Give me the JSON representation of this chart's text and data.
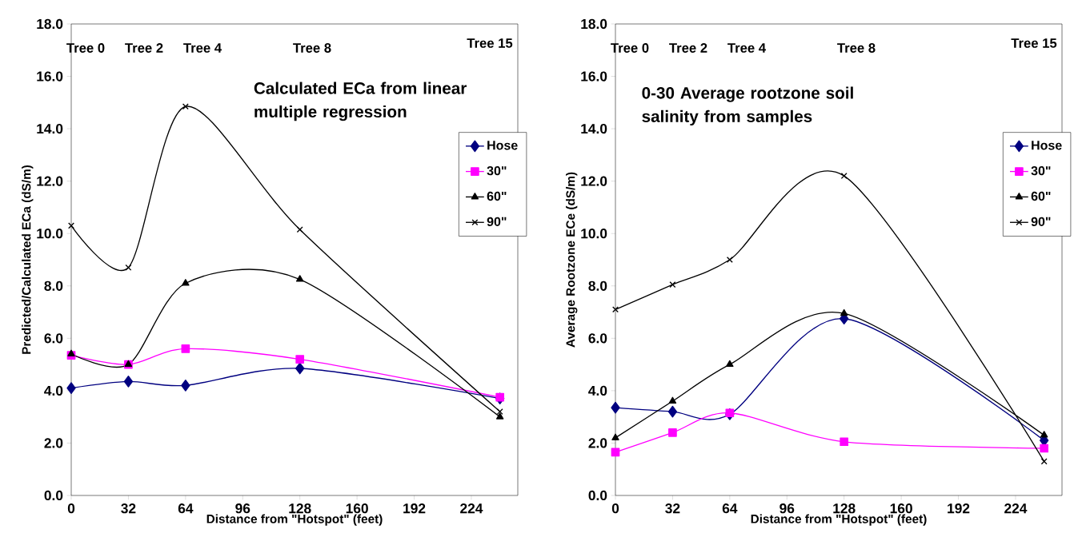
{
  "chart_data": [
    {
      "type": "line",
      "title": "Calculated ECa from linear multiple regression",
      "xlabel": "Distance from \"Hotspot\" (feet)",
      "ylabel": "Predicted/Calculated ECa (dS/m)",
      "x": [
        0,
        32,
        64,
        128,
        240
      ],
      "series": [
        {
          "name": "Hose",
          "color": "#000080",
          "marker": "diamond",
          "values": [
            4.1,
            4.35,
            4.2,
            4.85,
            3.7
          ]
        },
        {
          "name": "30\"",
          "color": "#ff00ff",
          "marker": "square",
          "values": [
            5.35,
            5.0,
            5.6,
            5.2,
            3.75
          ]
        },
        {
          "name": "60\"",
          "color": "#000000",
          "marker": "triangle",
          "values": [
            5.4,
            5.0,
            8.1,
            8.25,
            3.0
          ]
        },
        {
          "name": "90\"",
          "color": "#000000",
          "marker": "cross",
          "values": [
            10.3,
            8.7,
            14.85,
            10.15,
            3.2
          ]
        }
      ],
      "xlim": [
        0,
        250
      ],
      "xticks": [
        0,
        32,
        64,
        96,
        128,
        160,
        192,
        224
      ],
      "ylim": [
        0,
        18
      ],
      "yticks": [
        {
          "value": 0,
          "label": "0.0"
        },
        {
          "value": 2,
          "label": "2.0"
        },
        {
          "value": 4,
          "label": "4.0"
        },
        {
          "value": 6,
          "label": "6.0"
        },
        {
          "value": 8,
          "label": "8.0"
        },
        {
          "value": 10,
          "label": "10.0"
        },
        {
          "value": 12,
          "label": "12.0"
        },
        {
          "value": 14,
          "label": "14.0"
        },
        {
          "value": 16,
          "label": "16.0"
        },
        {
          "value": 18,
          "label": "18.0"
        }
      ],
      "annotations": [
        "Tree 0",
        "Tree 2",
        "Tree 4",
        "Tree 8",
        "Tree 15"
      ],
      "legend": "right",
      "line_style": "solid"
    },
    {
      "type": "line",
      "title": "0-30 Average rootzone soil salinity from samples",
      "xlabel": "Distance from \"Hotspot\" (feet)",
      "ylabel": "Average Rootzone ECe (dS/m)",
      "x": [
        0,
        32,
        64,
        128,
        240
      ],
      "series": [
        {
          "name": "Hose",
          "color": "#000080",
          "marker": "diamond",
          "values": [
            3.35,
            3.2,
            3.1,
            6.75,
            2.1
          ]
        },
        {
          "name": "30\"",
          "color": "#ff00ff",
          "marker": "square",
          "values": [
            1.65,
            2.4,
            3.15,
            2.05,
            1.8
          ]
        },
        {
          "name": "60\"",
          "color": "#000000",
          "marker": "triangle",
          "values": [
            2.2,
            3.6,
            5.0,
            6.95,
            2.3
          ]
        },
        {
          "name": "90\"",
          "color": "#000000",
          "marker": "cross",
          "values": [
            7.1,
            8.05,
            9.0,
            12.2,
            1.3
          ]
        }
      ],
      "xlim": [
        0,
        250
      ],
      "xticks": [
        0,
        32,
        64,
        96,
        128,
        160,
        192,
        224
      ],
      "ylim": [
        0,
        18
      ],
      "yticks": [
        {
          "value": 0,
          "label": "0.0"
        },
        {
          "value": 2,
          "label": "2.0"
        },
        {
          "value": 4,
          "label": "4.0"
        },
        {
          "value": 6,
          "label": "6.0"
        },
        {
          "value": 8,
          "label": "8.0"
        },
        {
          "value": 10,
          "label": "10.0"
        },
        {
          "value": 12,
          "label": "12.0"
        },
        {
          "value": 14,
          "label": "14.0"
        },
        {
          "value": 16,
          "label": "16.0"
        },
        {
          "value": 18,
          "label": "18.0"
        }
      ],
      "annotations": [
        "Tree 0",
        "Tree 2",
        "Tree 4",
        "Tree 8",
        "Tree 15"
      ],
      "legend": "right",
      "line_style": "solid"
    }
  ]
}
